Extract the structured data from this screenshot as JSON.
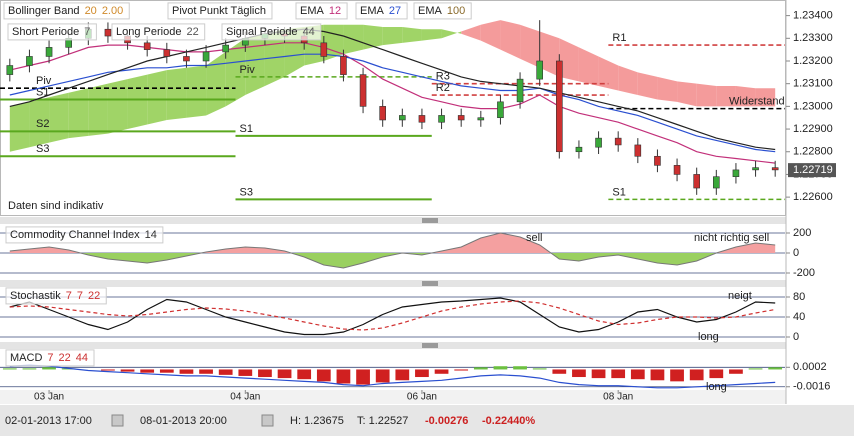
{
  "chart_data": [
    {
      "type": "candlestick",
      "legend": [
        [
          {
            "name": "Bollinger Band",
            "params": [
              "20",
              "2.00"
            ],
            "param_color": "#d08a2a"
          },
          {
            "name": "Pivot Punkt Täglich",
            "params": []
          },
          {
            "name": "EMA",
            "params": [
              "12"
            ],
            "param_color": "#c2307a"
          },
          {
            "name": "EMA",
            "params": [
              "27"
            ],
            "param_color": "#2a4fd0"
          },
          {
            "name": "EMA",
            "params": [
              "100"
            ],
            "param_color": "#8a6a2a"
          }
        ],
        [
          {
            "name": "Short Periode",
            "params": [
              "7"
            ],
            "param_color": "#555555"
          },
          {
            "name": "Long Periode",
            "params": [
              "22"
            ],
            "param_color": "#555555"
          },
          {
            "name": "Signal Periode",
            "params": [
              "44"
            ],
            "param_color": "#555555"
          }
        ]
      ],
      "annotations": [
        "Daten sind indikativ"
      ],
      "categories": [
        null,
        null,
        "03 Jan",
        null,
        null,
        null,
        null,
        null,
        null,
        null,
        null,
        null,
        "04 Jan",
        null,
        null,
        null,
        null,
        null,
        null,
        null,
        null,
        "06 Jan",
        null,
        null,
        null,
        null,
        null,
        null,
        null,
        null,
        null,
        "08 Jan",
        null,
        null,
        null,
        null,
        null,
        null,
        null,
        null
      ],
      "open": [
        1.2314,
        1.2318,
        1.2322,
        1.2326,
        1.233,
        1.2334,
        1.2331,
        1.2328,
        1.2325,
        1.2322,
        1.232,
        1.2324,
        1.2327,
        1.233,
        1.2332,
        1.2331,
        1.2328,
        1.2322,
        1.2314,
        1.23,
        1.2294,
        1.2296,
        1.2293,
        1.2296,
        1.2294,
        1.2295,
        1.2302,
        1.2312,
        1.232,
        1.228,
        1.2282,
        1.2286,
        1.2283,
        1.2278,
        1.2274,
        1.227,
        1.2264,
        1.2269,
        1.2272,
        1.2273
      ],
      "high": [
        1.2321,
        1.2325,
        1.2329,
        1.2333,
        1.2337,
        1.2337,
        1.2334,
        1.2331,
        1.2328,
        1.2325,
        1.2327,
        1.233,
        1.2333,
        1.2335,
        1.2335,
        1.2334,
        1.2331,
        1.2325,
        1.2317,
        1.2303,
        1.2299,
        1.2299,
        1.2299,
        1.2299,
        1.2298,
        1.2305,
        1.2315,
        1.2338,
        1.2323,
        1.2285,
        1.2289,
        1.2289,
        1.2286,
        1.2281,
        1.2277,
        1.2273,
        1.2272,
        1.2275,
        1.2276,
        1.2276
      ],
      "low": [
        1.2311,
        1.2315,
        1.2319,
        1.2323,
        1.2327,
        1.2328,
        1.2325,
        1.2322,
        1.2319,
        1.2317,
        1.2317,
        1.2321,
        1.2324,
        1.2327,
        1.2328,
        1.2325,
        1.2319,
        1.2311,
        1.2297,
        1.2291,
        1.2291,
        1.229,
        1.229,
        1.2291,
        1.2291,
        1.2292,
        1.2299,
        1.2309,
        1.2277,
        1.2277,
        1.2279,
        1.228,
        1.2275,
        1.2271,
        1.2267,
        1.2261,
        1.2261,
        1.2266,
        1.2269,
        1.2269
      ],
      "close": [
        1.2318,
        1.2322,
        1.2326,
        1.233,
        1.2334,
        1.2331,
        1.2328,
        1.2325,
        1.2322,
        1.232,
        1.2324,
        1.2327,
        1.233,
        1.2332,
        1.2331,
        1.2328,
        1.2322,
        1.2314,
        1.23,
        1.2294,
        1.2296,
        1.2293,
        1.2296,
        1.2294,
        1.2295,
        1.2302,
        1.2312,
        1.232,
        1.228,
        1.2282,
        1.2286,
        1.2283,
        1.2278,
        1.2274,
        1.227,
        1.2264,
        1.2269,
        1.2272,
        1.2273,
        1.2272
      ],
      "up_color": "#3aa83a",
      "down_color": "#cc3030",
      "cloud": {
        "span_a": [
          1.23,
          1.2302,
          1.2304,
          1.2306,
          1.2308,
          1.231,
          1.2312,
          1.2314,
          1.2316,
          1.2317,
          1.2318,
          1.2324,
          1.233,
          1.2332,
          1.2334,
          1.2335,
          1.2336,
          1.2336,
          1.2336,
          1.2335,
          1.2335,
          1.2334,
          1.2334,
          1.2332,
          1.2329,
          1.2325,
          1.2321,
          1.2317,
          1.2313,
          1.2311,
          1.2309,
          1.2307,
          1.2305,
          1.2303,
          1.2302,
          1.23,
          1.23,
          1.23,
          1.23,
          1.23
        ],
        "span_b": [
          1.228,
          1.2282,
          1.2284,
          1.2286,
          1.2287,
          1.2288,
          1.229,
          1.2292,
          1.2294,
          1.2295,
          1.2296,
          1.23,
          1.2305,
          1.2309,
          1.2313,
          1.2318,
          1.232,
          1.2323,
          1.2325,
          1.2327,
          1.2328,
          1.2329,
          1.233,
          1.2333,
          1.2336,
          1.2338,
          1.2336,
          1.2333,
          1.233,
          1.2326,
          1.2322,
          1.2318,
          1.2315,
          1.2313,
          1.2311,
          1.231,
          1.2309,
          1.2309,
          1.2308,
          1.2308
        ],
        "up_color": "#8fcc4c",
        "down_color": "#f28a8a"
      },
      "series": [
        {
          "color": "#c2307a",
          "values": [
            1.2316,
            1.2318,
            1.232,
            1.2323,
            1.2326,
            1.2327,
            1.2327,
            1.2326,
            1.2325,
            1.2324,
            1.2324,
            1.2325,
            1.2326,
            1.2327,
            1.2328,
            1.2328,
            1.2326,
            1.2323,
            1.2318,
            1.2312,
            1.2308,
            1.2304,
            1.2302,
            1.23,
            1.2299,
            1.2299,
            1.2301,
            1.2305,
            1.23,
            1.2297,
            1.2295,
            1.2293,
            1.229,
            1.2287,
            1.2284,
            1.228,
            1.2278,
            1.2277,
            1.2276,
            1.2275
          ]
        },
        {
          "color": "#2a4fd0",
          "values": [
            1.2305,
            1.2307,
            1.2309,
            1.2311,
            1.2313,
            1.2315,
            1.2316,
            1.2317,
            1.2317,
            1.2318,
            1.2318,
            1.2319,
            1.232,
            1.2321,
            1.2322,
            1.2323,
            1.2323,
            1.2322,
            1.232,
            1.2317,
            1.2315,
            1.2313,
            1.2311,
            1.2309,
            1.2308,
            1.2307,
            1.2307,
            1.2308,
            1.2305,
            1.2303,
            1.23,
            1.2298,
            1.2296,
            1.2293,
            1.229,
            1.2287,
            1.2285,
            1.2283,
            1.2281,
            1.228
          ]
        },
        {
          "color": "#222222",
          "values": [
            1.23,
            1.2302,
            1.2305,
            1.2308,
            1.2311,
            1.2314,
            1.2317,
            1.232,
            1.2322,
            1.2324,
            1.2326,
            1.2328,
            1.233,
            1.2332,
            1.2333,
            1.2334,
            1.2333,
            1.2331,
            1.2328,
            1.2325,
            1.2322,
            1.2319,
            1.2316,
            1.2313,
            1.2311,
            1.231,
            1.2309,
            1.2308,
            1.2306,
            1.2304,
            1.2302,
            1.23,
            1.2298,
            1.2295,
            1.2292,
            1.2289,
            1.2286,
            1.2284,
            1.2282,
            1.2281
          ]
        }
      ],
      "levels": [
        {
          "label": "Piv",
          "value": 1.2308,
          "from": 0,
          "to": 11,
          "color": "#000000",
          "dash": true
        },
        {
          "label": "S1",
          "value": 1.2303,
          "from": 0,
          "to": 11,
          "color": "#5aa81e"
        },
        {
          "label": "S2",
          "value": 1.2289,
          "from": 0,
          "to": 11,
          "color": "#5aa81e"
        },
        {
          "label": "S3",
          "value": 1.2278,
          "from": 0,
          "to": 11,
          "color": "#5aa81e"
        },
        {
          "label": "Piv",
          "value": 1.2313,
          "from": 12,
          "to": 21,
          "color": "#5aa81e",
          "dash": true
        },
        {
          "label": "S1",
          "value": 1.2287,
          "from": 12,
          "to": 21,
          "color": "#5aa81e"
        },
        {
          "label": "S3",
          "value": 1.2259,
          "from": 12,
          "to": 21,
          "color": "#5aa81e"
        },
        {
          "label": "R3",
          "value": 1.231,
          "from": 22,
          "to": 30,
          "color": "#d04040",
          "dash": true
        },
        {
          "label": "R2",
          "value": 1.2305,
          "from": 22,
          "to": 30,
          "color": "#d04040",
          "dash": true
        },
        {
          "label": "R1",
          "value": 1.2327,
          "from": 31,
          "to": 39,
          "color": "#d04040",
          "dash": true
        },
        {
          "label": "Widerstand",
          "value": 1.2299,
          "from": 31,
          "to": 39,
          "color": "#000000",
          "dash": true
        },
        {
          "label": "S1",
          "value": 1.2259,
          "from": 31,
          "to": 39,
          "color": "#5aa81e",
          "dash": true
        }
      ],
      "last_price": 1.22719,
      "ylim": [
        1.2253,
        1.2346
      ],
      "yticks": [
        {
          "value": 1.226,
          "label": "1.22600"
        },
        {
          "value": 1.227,
          "label": "1.22700"
        },
        {
          "value": 1.228,
          "label": "1.22800"
        },
        {
          "value": 1.229,
          "label": "1.22900"
        },
        {
          "value": 1.23,
          "label": "1.23000"
        },
        {
          "value": 1.231,
          "label": "1.23100"
        },
        {
          "value": 1.232,
          "label": "1.23200"
        },
        {
          "value": 1.233,
          "label": "1.23300"
        },
        {
          "value": 1.234,
          "label": "1.23400"
        }
      ],
      "grid": false
    },
    {
      "type": "area",
      "legend": [
        {
          "name": "Commodity Channel Index",
          "params": [
            "14"
          ],
          "param_color": "#333333"
        }
      ],
      "annotations": [
        "sell",
        "nicht richtig sell"
      ],
      "values": [
        20,
        40,
        60,
        30,
        -20,
        -60,
        -80,
        -100,
        -70,
        -30,
        10,
        40,
        60,
        50,
        20,
        -40,
        -120,
        -150,
        -100,
        -40,
        0,
        -20,
        20,
        60,
        150,
        200,
        160,
        80,
        -60,
        -80,
        -40,
        -20,
        -60,
        -100,
        -120,
        -80,
        0,
        60,
        100,
        80
      ],
      "color": "#777777",
      "pos_color": "#f4a0a0",
      "neg_color": "#9ad060",
      "ylim": [
        -250,
        250
      ],
      "yticks": [
        200,
        0,
        -200
      ],
      "grid": true
    },
    {
      "type": "line",
      "legend": [
        {
          "name": "Stochastik",
          "params": [
            "7",
            "7",
            "22"
          ],
          "param_color": "#cc3030"
        }
      ],
      "annotations": [
        "neigt",
        "long"
      ],
      "series": [
        {
          "color": "#111111",
          "values": [
            60,
            70,
            55,
            40,
            25,
            15,
            30,
            55,
            75,
            70,
            55,
            40,
            30,
            20,
            10,
            5,
            5,
            10,
            25,
            45,
            60,
            65,
            70,
            72,
            75,
            78,
            70,
            45,
            20,
            10,
            15,
            30,
            50,
            55,
            40,
            30,
            35,
            50,
            70,
            68
          ]
        },
        {
          "color": "#d03030",
          "dash": true,
          "values": [
            60,
            62,
            60,
            55,
            50,
            45,
            42,
            45,
            50,
            55,
            58,
            56,
            52,
            45,
            38,
            30,
            22,
            16,
            14,
            18,
            28,
            40,
            52,
            60,
            66,
            70,
            72,
            68,
            58,
            45,
            32,
            25,
            28,
            35,
            40,
            40,
            38,
            40,
            48,
            55
          ]
        }
      ],
      "ylim": [
        0,
        100
      ],
      "yticks": [
        80,
        40,
        0
      ],
      "grid": true
    },
    {
      "type": "bar",
      "legend": [
        {
          "name": "MACD",
          "params": [
            "7",
            "22",
            "44"
          ],
          "param_color": "#cc3030"
        }
      ],
      "annotations": [
        "long"
      ],
      "values": [
        0.0001,
        0.0001,
        0.0002,
        0.0001,
        0,
        -0.0001,
        -0.0002,
        -0.0003,
        -0.0003,
        -0.0004,
        -0.0004,
        -0.0005,
        -0.0006,
        -0.0007,
        -0.0008,
        -0.0009,
        -0.0011,
        -0.0013,
        -0.0014,
        -0.0012,
        -0.001,
        -0.0007,
        -0.0004,
        -0.0001,
        0.0002,
        0.0003,
        0.0003,
        0.0001,
        -0.0004,
        -0.0007,
        -0.0008,
        -0.0008,
        -0.0009,
        -0.001,
        -0.0011,
        -0.001,
        -0.0008,
        -0.0004,
        0.0001,
        0.0002
      ],
      "pos_color": "#6cc040",
      "neg_color": "#d02020",
      "series": [
        {
          "color": "#2a4fd0",
          "values": [
            0.0003,
            0.0004,
            0.0003,
            0.0001,
            -0.0001,
            -0.0002,
            -0.0003,
            -0.0004,
            -0.0005,
            -0.0006,
            -0.0006,
            -0.0007,
            -0.0008,
            -0.0009,
            -0.001,
            -0.0011,
            -0.0012,
            -0.0014,
            -0.0015,
            -0.0013,
            -0.0012,
            -0.0011,
            -0.001,
            -0.0008,
            -0.0006,
            -0.0005,
            -0.0006,
            -0.0008,
            -0.0012,
            -0.0014,
            -0.0015,
            -0.0015,
            -0.0016,
            -0.0017,
            -0.0017,
            -0.0016,
            -0.0015,
            -0.0014,
            -0.0013,
            -0.0012
          ]
        }
      ],
      "ylim": [
        -0.0019,
        0.0018
      ],
      "yticks": [
        {
          "value": 0.0002,
          "label": "0.0002"
        },
        {
          "value": -0.0016,
          "label": "-0.0016"
        }
      ],
      "grid": true
    }
  ],
  "footer": {
    "from": "02-01-2013 17:00",
    "to": "08-01-2013 20:00",
    "high": "H: 1.23675",
    "low": "T: 1.22527",
    "change": "-0.00276",
    "change_pct": "-0.22440%"
  }
}
